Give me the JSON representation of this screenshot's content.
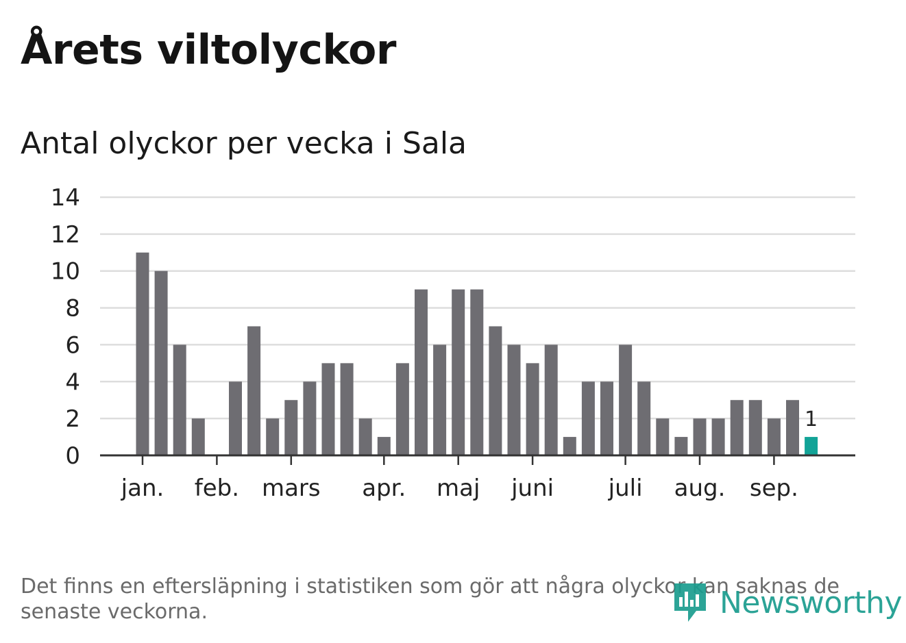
{
  "header": {
    "title": "Årets viltolyckor",
    "subtitle": "Antal olyckor per vecka i Sala"
  },
  "chart_data": {
    "type": "bar",
    "ylim": [
      0,
      14
    ],
    "yticks": [
      0,
      2,
      4,
      6,
      8,
      10,
      12,
      14
    ],
    "grid": true,
    "month_labels": [
      {
        "label": "jan.",
        "week_index": 0
      },
      {
        "label": "feb.",
        "week_index": 4
      },
      {
        "label": "mars",
        "week_index": 8
      },
      {
        "label": "apr.",
        "week_index": 13
      },
      {
        "label": "maj",
        "week_index": 17
      },
      {
        "label": "juni",
        "week_index": 21
      },
      {
        "label": "juli",
        "week_index": 26
      },
      {
        "label": "aug.",
        "week_index": 30
      },
      {
        "label": "sep.",
        "week_index": 34
      }
    ],
    "values": [
      11,
      10,
      6,
      2,
      0,
      4,
      7,
      2,
      3,
      4,
      5,
      5,
      2,
      1,
      5,
      9,
      6,
      9,
      9,
      7,
      6,
      5,
      6,
      1,
      4,
      4,
      6,
      4,
      2,
      1,
      2,
      2,
      3,
      3,
      2,
      3,
      1
    ],
    "highlight_index": 36,
    "highlight_label": "1",
    "bar_color": "#6e6d72",
    "highlight_color": "#12a397"
  },
  "footer": {
    "note": "Det finns en eftersläpning i statistiken som gör att några olyckor kan saknas de senaste veckorna.",
    "brand": "Newsworthy",
    "brand_color": "#1a9c8e"
  }
}
